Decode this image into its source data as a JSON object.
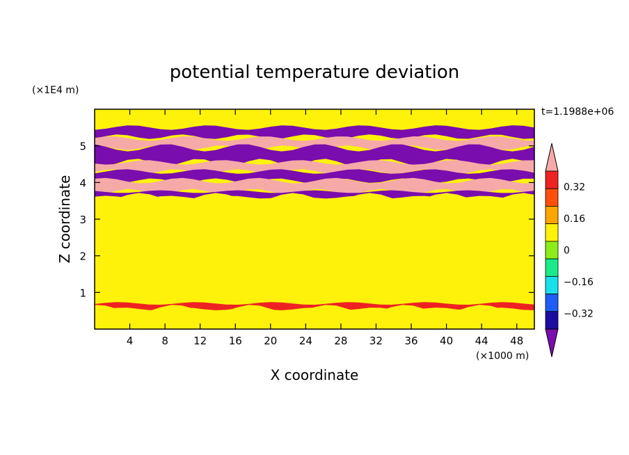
{
  "chart_data": {
    "type": "heatmap",
    "title": "potential temperature deviation",
    "xlabel": "X coordinate",
    "ylabel": "Z coordinate",
    "x_unit": "(×1000 m)",
    "y_unit": "(×1E4 m)",
    "time_label": "t=1.1988e+06",
    "xlim": [
      0,
      50
    ],
    "ylim": [
      0,
      6
    ],
    "x_ticks": [
      4,
      8,
      12,
      16,
      20,
      24,
      28,
      32,
      36,
      40,
      44,
      48
    ],
    "y_ticks": [
      1,
      2,
      3,
      4,
      5
    ],
    "colorbar": {
      "levels": [
        -0.4,
        -0.32,
        -0.24,
        -0.16,
        -0.08,
        0,
        0.08,
        0.16,
        0.24,
        0.32,
        0.4
      ],
      "tick_labels": [
        "0.32",
        "0.16",
        "0",
        "−0.16",
        "−0.32"
      ],
      "tick_values": [
        0.32,
        0.16,
        0,
        -0.16,
        -0.32
      ],
      "colors": [
        "#7a0dad",
        "#1a0ea0",
        "#1e5ef5",
        "#19e0ea",
        "#19eb88",
        "#8ced1a",
        "#fff20a",
        "#ffa500",
        "#ff4f0a",
        "#ee2222",
        "#f5aaa8"
      ],
      "extend": "both"
    },
    "layers": [
      {
        "z": [
          5.6,
          6.0
        ],
        "value": 0.02
      },
      {
        "z": [
          5.25,
          5.5
        ],
        "value": -0.45
      },
      {
        "z": [
          4.95,
          5.2
        ],
        "value": 0.45
      },
      {
        "z": [
          4.55,
          4.95
        ],
        "value": -0.45
      },
      {
        "z": [
          4.3,
          4.55
        ],
        "value": 0.45
      },
      {
        "z": [
          4.05,
          4.3
        ],
        "value": -0.45
      },
      {
        "z": [
          3.75,
          4.05
        ],
        "value": 0.45
      },
      {
        "z": [
          3.6,
          3.75
        ],
        "value": -0.45
      },
      {
        "z": [
          0.7,
          3.6
        ],
        "value": 0.0
      },
      {
        "z": [
          0.55,
          0.7
        ],
        "value": 0.3
      },
      {
        "z": [
          0.0,
          0.55
        ],
        "value": 0.05
      }
    ]
  }
}
